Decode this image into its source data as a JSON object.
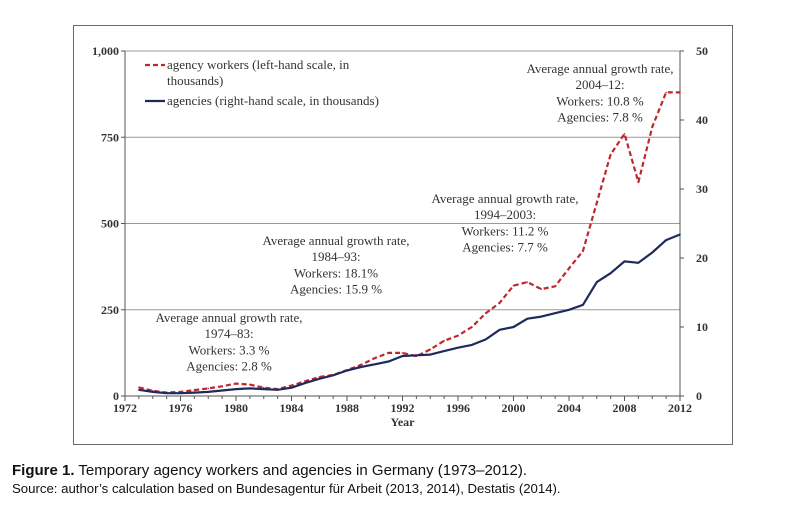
{
  "colors": {
    "workers": "#c0272d",
    "agencies": "#1f2a5c",
    "grid": "#999999",
    "frame": "#6a6a6a",
    "text": "#333333"
  },
  "caption": {
    "label": "Figure 1.",
    "title": "Temporary agency workers and agencies in Germany (1973–2012).",
    "source": "Source: author’s calculation based on Bundesagentur für Arbeit (2013, 2014), Destatis (2014)."
  },
  "chart_data": {
    "type": "line",
    "title": "",
    "xlabel": "Year",
    "ylabel": "",
    "xlim": [
      1972,
      2012
    ],
    "ylim_left": [
      0,
      1000
    ],
    "ylim_right": [
      0,
      50
    ],
    "grid": "horizontal",
    "legend_position": "top-left",
    "x_ticks": [
      "1972",
      "1976",
      "1980",
      "1984",
      "1988",
      "1992",
      "1996",
      "2000",
      "2004",
      "2008",
      "2012"
    ],
    "y_ticks_left": [
      "0",
      "250",
      "500",
      "750",
      "1,000"
    ],
    "y_ticks_right": [
      "0",
      "10",
      "20",
      "30",
      "40",
      "50"
    ],
    "x": [
      1973,
      1974,
      1975,
      1976,
      1977,
      1978,
      1979,
      1980,
      1981,
      1982,
      1983,
      1984,
      1985,
      1986,
      1987,
      1988,
      1989,
      1990,
      1991,
      1992,
      1993,
      1994,
      1995,
      1996,
      1997,
      1998,
      1999,
      2000,
      2001,
      2002,
      2003,
      2004,
      2005,
      2006,
      2007,
      2008,
      2009,
      2010,
      2011,
      2012
    ],
    "series": [
      {
        "name": "agency workers (left-hand scale, in thousands)",
        "axis": "left",
        "style": "dashed",
        "values": [
          25,
          15,
          10,
          12,
          17,
          22,
          28,
          36,
          33,
          24,
          20,
          30,
          43,
          55,
          61,
          75,
          90,
          110,
          125,
          125,
          115,
          135,
          160,
          175,
          200,
          240,
          270,
          320,
          330,
          310,
          318,
          370,
          420,
          560,
          700,
          760,
          620,
          780,
          880,
          880
        ]
      },
      {
        "name": "agencies (right-hand scale, in thousands)",
        "axis": "right",
        "style": "solid",
        "values": [
          0.9,
          0.6,
          0.4,
          0.4,
          0.5,
          0.6,
          0.8,
          1.0,
          1.1,
          1.0,
          0.9,
          1.2,
          1.9,
          2.5,
          3.0,
          3.7,
          4.2,
          4.6,
          5.0,
          5.8,
          5.9,
          6.0,
          6.5,
          7.0,
          7.4,
          8.2,
          9.6,
          10.0,
          11.2,
          11.5,
          12.0,
          12.5,
          13.2,
          16.5,
          17.8,
          19.5,
          19.3,
          20.8,
          22.6,
          23.4
        ]
      }
    ],
    "annotations": [
      {
        "lines": [
          "Average annual growth rate,",
          "1974–83:",
          "Workers: 3.3 %",
          "Agencies: 2.8 %"
        ]
      },
      {
        "lines": [
          "Average annual growth rate,",
          "1984–93:",
          "Workers: 18.1%",
          "Agencies: 15.9 %"
        ]
      },
      {
        "lines": [
          "Average annual growth rate,",
          "1994–2003:",
          "Workers: 11.2 %",
          "Agencies: 7.7 %"
        ]
      },
      {
        "lines": [
          "Average annual growth rate,",
          "2004–12:",
          "Workers: 10.8 %",
          "Agencies: 7.8 %"
        ]
      }
    ],
    "legend": [
      {
        "lines": [
          "agency workers (left-hand scale, in",
          "thousands)"
        ]
      },
      {
        "lines": [
          "agencies (right-hand scale, in thousands)"
        ]
      }
    ]
  }
}
